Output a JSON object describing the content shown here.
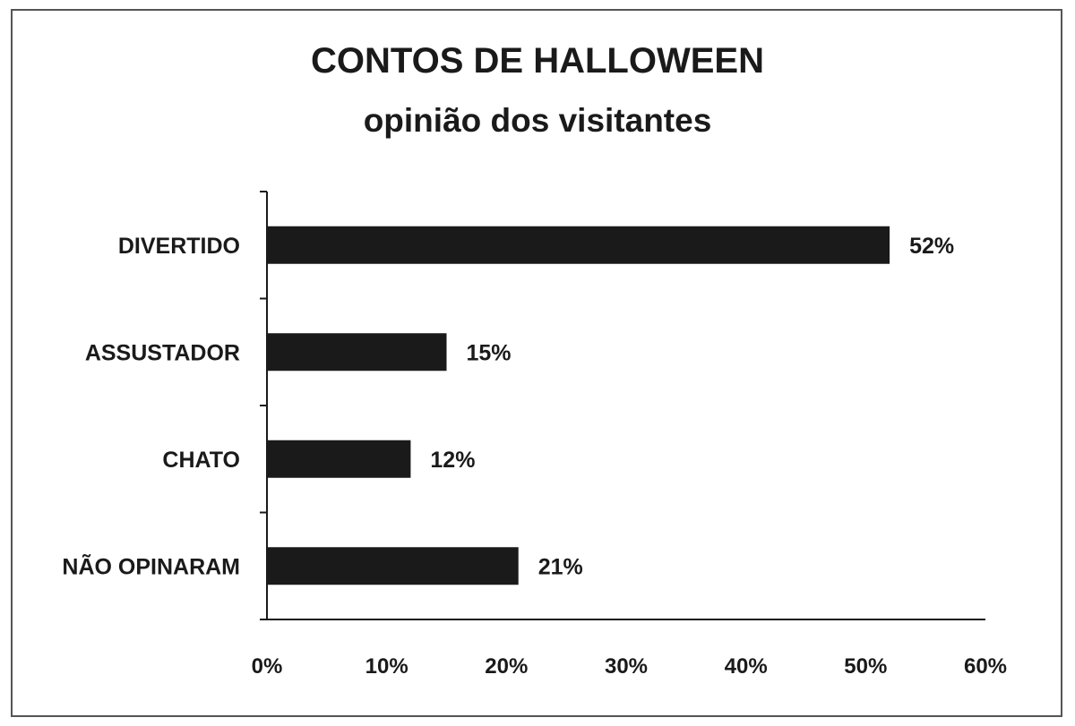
{
  "chart_data": {
    "type": "bar",
    "orientation": "horizontal",
    "title": "CONTOS DE HALLOWEEN",
    "subtitle": "opinião dos visitantes",
    "categories": [
      "DIVERTIDO",
      "ASSUSTADOR",
      "CHATO",
      "NÃO OPINARAM"
    ],
    "values": [
      52,
      15,
      12,
      21
    ],
    "value_labels": [
      "52%",
      "15%",
      "12%",
      "21%"
    ],
    "x_ticks": [
      "0%",
      "10%",
      "20%",
      "30%",
      "40%",
      "50%",
      "60%"
    ],
    "xlim": [
      0,
      60
    ],
    "grid": false,
    "legend": "none",
    "bar_color": "#1a1a1a"
  }
}
